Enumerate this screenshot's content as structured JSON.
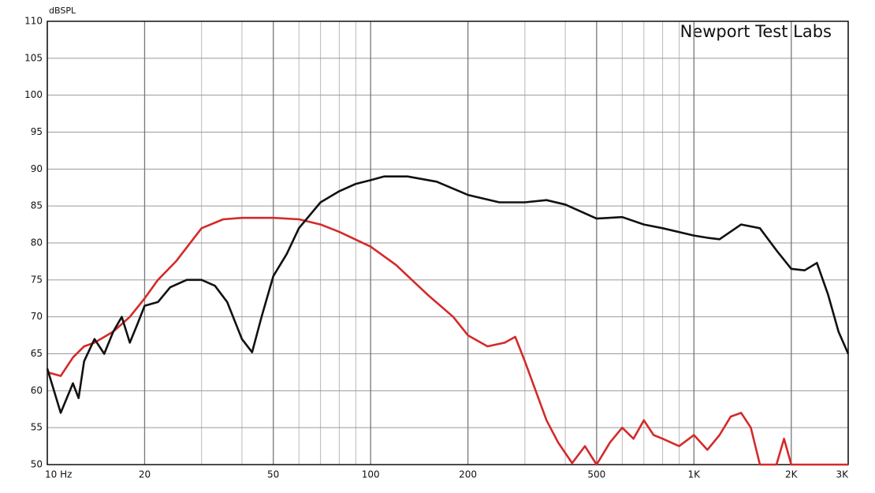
{
  "chart_data": {
    "type": "line",
    "y_label": "dBSPL",
    "annotation": "Newport Test Labs",
    "xlog": true,
    "grid": true,
    "xlim": [
      10,
      3000
    ],
    "ylim": [
      50,
      110
    ],
    "xticks": [
      {
        "value": 10,
        "label": "10 Hz"
      },
      20,
      50,
      100,
      200,
      500,
      {
        "value": 1000,
        "label": "1K"
      },
      {
        "value": 2000,
        "label": "2K"
      },
      {
        "value": 3000,
        "label": "3K"
      }
    ],
    "xgrid": [
      30,
      40,
      60,
      70,
      80,
      90,
      300,
      400,
      600,
      700,
      800,
      900
    ],
    "yticks": [
      50,
      55,
      60,
      65,
      70,
      75,
      80,
      85,
      90,
      95,
      100,
      105,
      110
    ],
    "series": [
      {
        "color": "#111111",
        "x": [
          10,
          11,
          12,
          12.5,
          13,
          14,
          15,
          16,
          17,
          18,
          19,
          20,
          22,
          24,
          27,
          30,
          33,
          36,
          40,
          43,
          46,
          50,
          55,
          60,
          70,
          80,
          90,
          100,
          110,
          130,
          160,
          200,
          250,
          300,
          350,
          400,
          500,
          600,
          700,
          800,
          1000,
          1100,
          1200,
          1400,
          1600,
          1800,
          2000,
          2200,
          2400,
          2600,
          2800,
          3000
        ],
        "values": [
          63,
          57,
          61,
          59,
          64,
          67,
          65,
          68,
          70,
          66.5,
          69,
          71.5,
          72,
          74,
          75,
          75,
          74.2,
          72,
          67,
          65.2,
          70,
          75.5,
          78.5,
          82,
          85.5,
          87,
          88,
          88.5,
          89,
          89,
          88.3,
          86.5,
          85.5,
          85.5,
          85.8,
          85.2,
          83.3,
          83.5,
          82.5,
          82,
          81,
          80.7,
          80.5,
          82.5,
          82,
          79,
          76.5,
          76.3,
          77.3,
          73,
          68,
          65
        ]
      },
      {
        "color": "#d42a2a",
        "x": [
          10,
          11,
          12,
          13,
          14,
          16,
          18,
          20,
          22,
          25,
          30,
          35,
          40,
          50,
          60,
          70,
          80,
          100,
          120,
          150,
          180,
          200,
          230,
          260,
          280,
          300,
          350,
          380,
          420,
          460,
          500,
          550,
          600,
          650,
          700,
          750,
          800,
          900,
          1000,
          1100,
          1200,
          1300,
          1400,
          1500,
          1600,
          1800,
          1900,
          2000,
          3000
        ],
        "values": [
          62.5,
          62,
          64.5,
          66,
          66.5,
          68,
          70,
          72.5,
          75,
          77.5,
          82,
          83.2,
          83.4,
          83.4,
          83.2,
          82.5,
          81.5,
          79.5,
          77,
          73,
          70,
          67.5,
          66,
          66.5,
          67.3,
          64,
          56,
          53,
          50.2,
          52.5,
          50,
          53,
          55,
          53.5,
          56,
          54,
          53.5,
          52.5,
          54,
          52,
          54,
          56.5,
          57,
          55,
          50,
          50,
          53.5,
          50,
          50
        ]
      }
    ]
  }
}
